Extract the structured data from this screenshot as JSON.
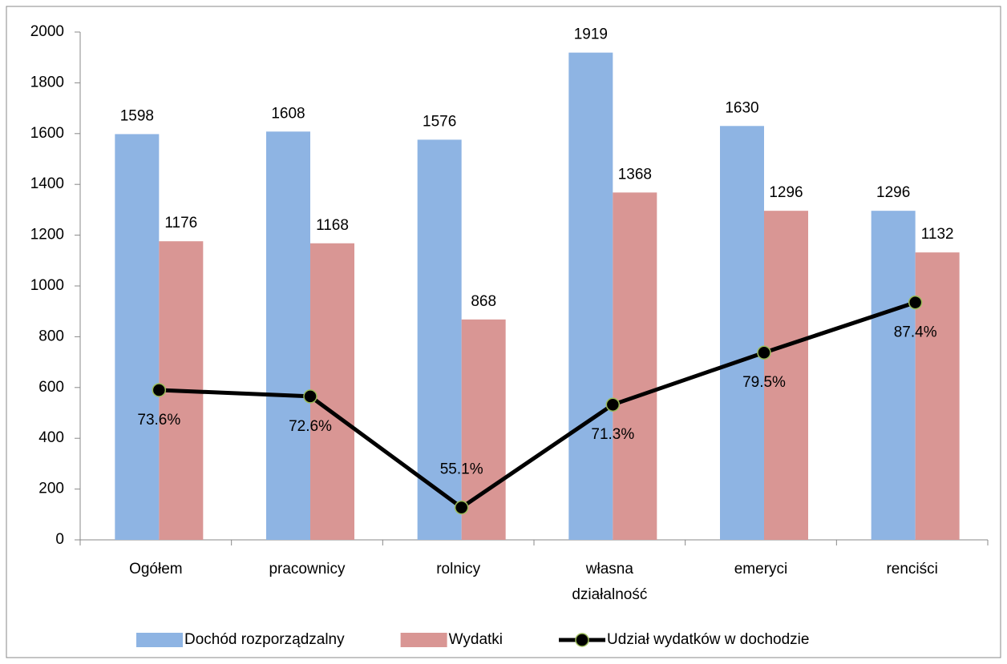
{
  "chart_data": {
    "type": "bar",
    "categories": [
      "Ogółem",
      "pracownicy",
      "rolnicy",
      "własna działalność",
      "emeryci",
      "renciści"
    ],
    "series": [
      {
        "name": "Dochód rozporządzalny",
        "color": "#8eb4e3",
        "values": [
          1598,
          1608,
          1576,
          1919,
          1630,
          1296
        ]
      },
      {
        "name": "Wydatki",
        "color": "#d99694",
        "values": [
          1176,
          1168,
          868,
          1368,
          1296,
          1132
        ]
      },
      {
        "name": "Udział wydatków w dochodzie",
        "type": "line",
        "axis": "y2",
        "color": "#000000",
        "marker_color": "#9bbb59",
        "values": [
          73.6,
          72.6,
          55.1,
          71.3,
          79.5,
          87.4
        ],
        "value_labels": [
          "73.6%",
          "72.6%",
          "55.1%",
          "71.3%",
          "79.5%",
          "87.4%"
        ]
      }
    ],
    "ylim": [
      0,
      2000
    ],
    "yticks": [
      0,
      200,
      400,
      600,
      800,
      1000,
      1200,
      1400,
      1600,
      1800,
      2000
    ],
    "y2lim": [
      50,
      130
    ],
    "grid": false,
    "legend": "bottom"
  }
}
